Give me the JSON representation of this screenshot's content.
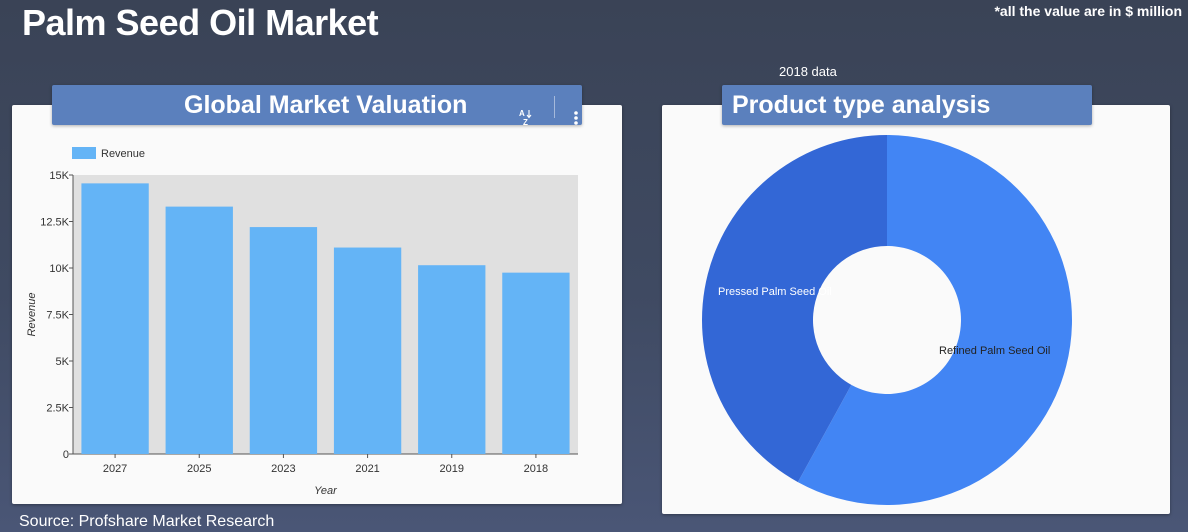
{
  "page": {
    "title": "Palm Seed Oil Market",
    "units_note": "*all the value are in $ million",
    "data_year_note": "2018 data",
    "source": "Source: Profshare Market Research"
  },
  "bar_panel": {
    "title": "Global Market Valuation",
    "sort_icon": "sort-az-icon",
    "menu_icon": "more-vert-icon"
  },
  "donut_panel": {
    "title": "Product type analysis"
  },
  "colors": {
    "bar": "#64b4f6",
    "plot_bg": "#e0e0e0",
    "donut_refined": "#4285f4",
    "donut_pressed": "#3367d6",
    "header": "#5b80bd"
  },
  "chart_data": [
    {
      "type": "bar",
      "categories": [
        "2027",
        "2025",
        "2023",
        "2021",
        "2019",
        "2018"
      ],
      "series": [
        {
          "name": "Revenue",
          "values": [
            14550,
            13300,
            12200,
            11100,
            10150,
            9750
          ]
        }
      ],
      "xlabel": "Year",
      "ylabel": "Revenue",
      "ylim": [
        0,
        15000
      ],
      "yticks": [
        0,
        2500,
        5000,
        7500,
        10000,
        12500,
        15000
      ],
      "ytick_labels": [
        "0",
        "2.5K",
        "5K",
        "7.5K",
        "10K",
        "12.5K",
        "15K"
      ],
      "legend": "top-left",
      "grid": false
    },
    {
      "type": "pie",
      "donut": true,
      "labels": [
        "Refined Palm Seed Oil",
        "Pressed Palm Seed Oil"
      ],
      "values": [
        0.58,
        0.42
      ],
      "legend": "none"
    }
  ]
}
